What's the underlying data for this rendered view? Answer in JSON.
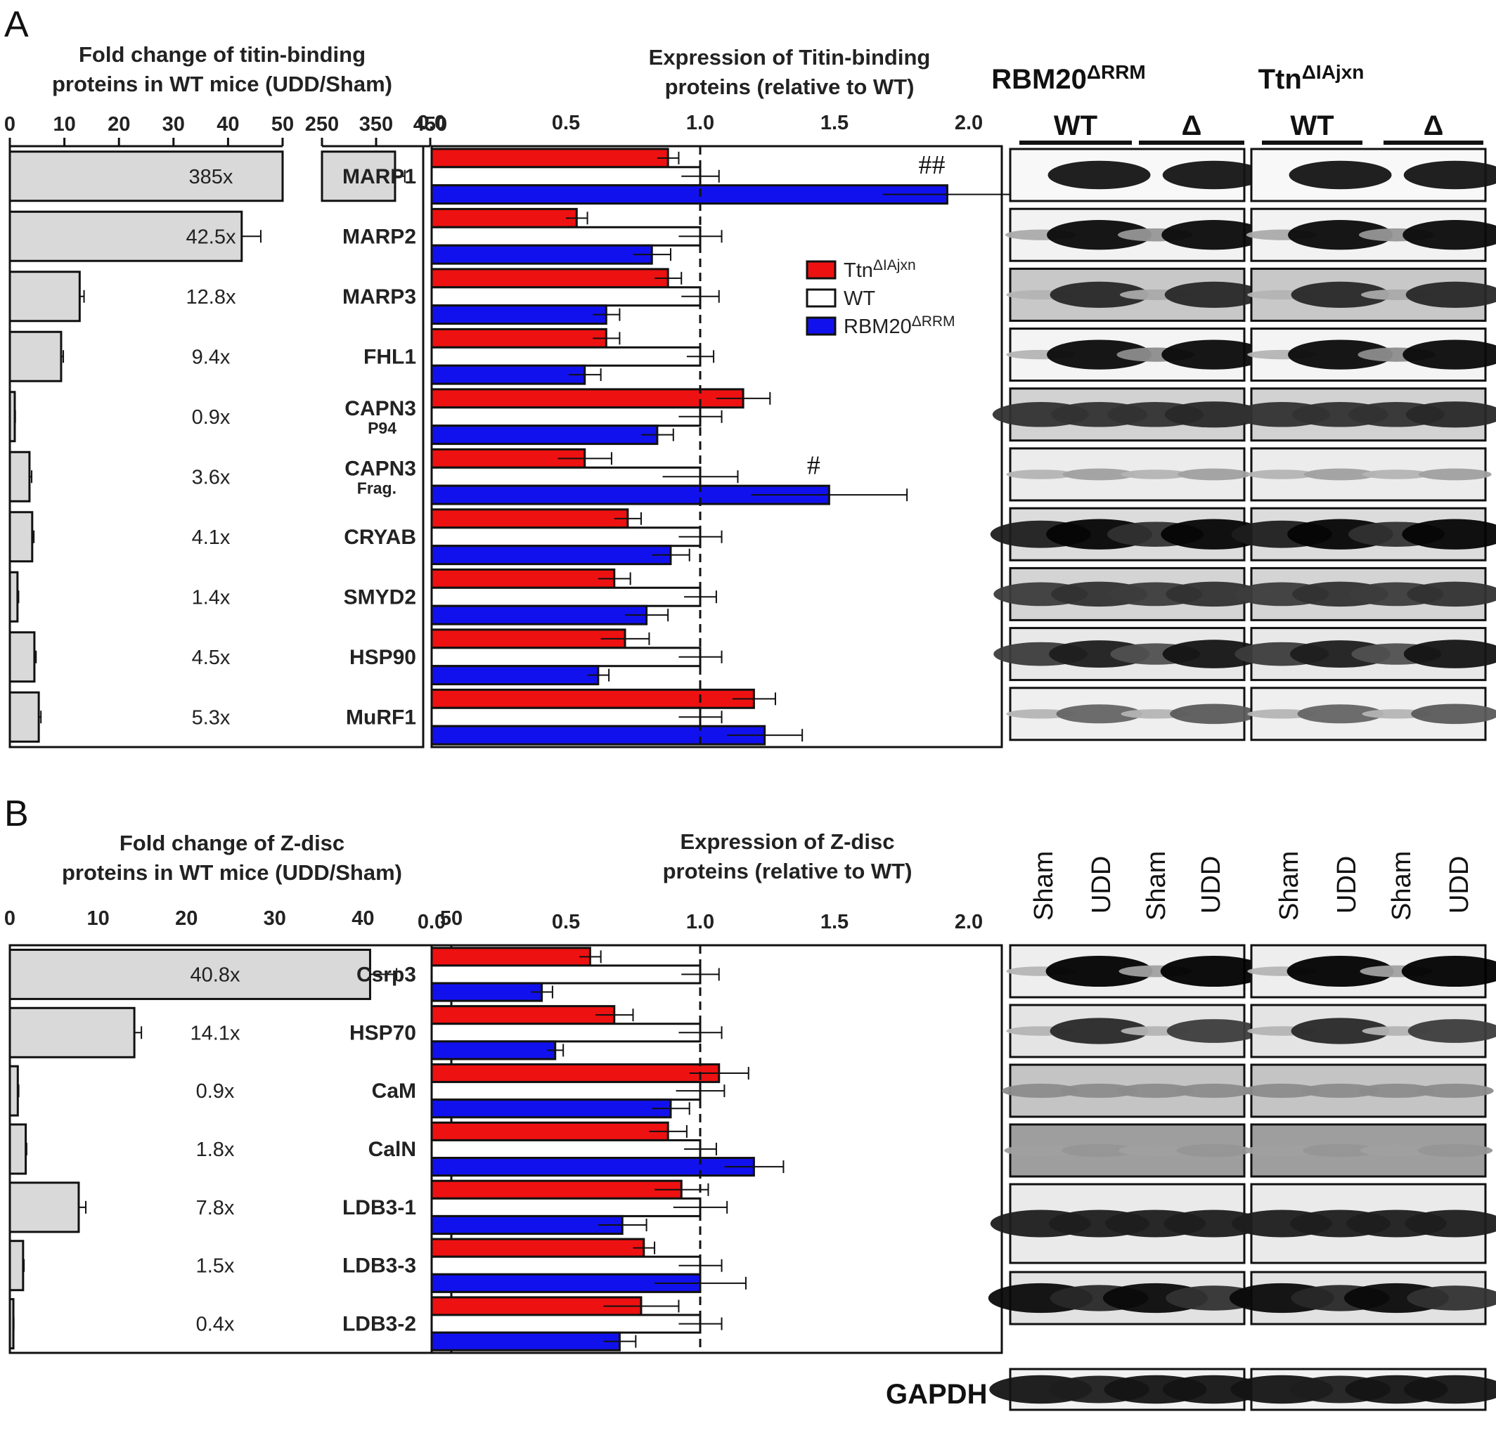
{
  "panels": {
    "a": "A",
    "b": "B"
  },
  "blot_headers": {
    "a_group1": "RBM20",
    "a_group1_sup": "ΔRRM",
    "a_group2": "Ttn",
    "a_group2_sup": "ΔIAjxn",
    "a_lanes": [
      "WT",
      "Δ",
      "WT",
      "Δ"
    ],
    "b_lanes": [
      "Sham",
      "UDD",
      "Sham",
      "UDD",
      "Sham",
      "UDD",
      "Sham",
      "UDD"
    ],
    "gapdh": "GAPDH"
  },
  "legend": [
    {
      "name": "Ttn",
      "sup": "ΔIAjxn",
      "color": "#ee1111"
    },
    {
      "name": "WT",
      "sup": "",
      "color": "#ffffff"
    },
    {
      "name": "RBM20",
      "sup": "ΔRRM",
      "color": "#1111ee"
    }
  ],
  "colors": {
    "fold_bar": "#d9d9d9",
    "ttn": "#ee1111",
    "wt": "#ffffff",
    "rbm20": "#1111ee",
    "dashed_line": "#111111"
  },
  "chart_data": [
    {
      "type": "bar",
      "orientation": "horizontal",
      "title_lines": [
        "Fold change of titin-binding",
        "proteins in WT mice (UDD/Sham)"
      ],
      "axis_break": {
        "segment1": [
          0,
          50
        ],
        "segment2": [
          250,
          450
        ]
      },
      "ticks": [
        "0",
        "10",
        "20",
        "30",
        "40",
        "50",
        "250",
        "350",
        "450"
      ],
      "categories": [
        "MARP1",
        "MARP2",
        "MARP3",
        "FHL1",
        "CAPN3 P94",
        "CAPN3 Frag.",
        "CRYAB",
        "SMYD2",
        "HSP90",
        "MuRF1"
      ],
      "values": [
        385,
        42.5,
        12.8,
        9.4,
        0.9,
        3.6,
        4.1,
        1.4,
        4.5,
        5.3
      ],
      "errors": [
        18,
        3.5,
        0.8,
        0.4,
        0.1,
        0.4,
        0.3,
        0.2,
        0.3,
        0.4
      ],
      "labels": [
        "385x",
        "42.5x",
        "12.8x",
        "9.4x",
        "0.9x",
        "3.6x",
        "4.1x",
        "1.4x",
        "4.5x",
        "5.3x"
      ]
    },
    {
      "type": "bar",
      "orientation": "horizontal",
      "title_lines": [
        "Expression of Titin-binding",
        "proteins (relative to WT)"
      ],
      "xlim": [
        0,
        2.0
      ],
      "ticks": [
        "0.0",
        "0.5",
        "1.0",
        "1.5",
        "2.0"
      ],
      "reference_line": 1.0,
      "categories": [
        {
          "main": "MARP1",
          "sub": ""
        },
        {
          "main": "MARP2",
          "sub": ""
        },
        {
          "main": "MARP3",
          "sub": ""
        },
        {
          "main": "FHL1",
          "sub": ""
        },
        {
          "main": "CAPN3",
          "sub": "P94"
        },
        {
          "main": "CAPN3",
          "sub": "Frag."
        },
        {
          "main": "CRYAB",
          "sub": ""
        },
        {
          "main": "SMYD2",
          "sub": ""
        },
        {
          "main": "HSP90",
          "sub": ""
        },
        {
          "main": "MuRF1",
          "sub": ""
        }
      ],
      "series": [
        {
          "name": "TtnΔIAjxn",
          "values": [
            0.88,
            0.54,
            0.88,
            0.65,
            1.16,
            0.57,
            0.73,
            0.68,
            0.72,
            1.2
          ],
          "errors": [
            0.04,
            0.04,
            0.05,
            0.05,
            0.1,
            0.1,
            0.05,
            0.06,
            0.09,
            0.08
          ]
        },
        {
          "name": "WT",
          "values": [
            1.0,
            1.0,
            1.0,
            1.0,
            1.0,
            1.0,
            1.0,
            1.0,
            1.0,
            1.0
          ],
          "errors": [
            0.07,
            0.08,
            0.07,
            0.05,
            0.08,
            0.14,
            0.08,
            0.06,
            0.08,
            0.08
          ]
        },
        {
          "name": "RBM20ΔRRM",
          "values": [
            1.92,
            0.82,
            0.65,
            0.57,
            0.84,
            1.48,
            0.89,
            0.8,
            0.62,
            1.24
          ],
          "errors": [
            0.24,
            0.07,
            0.05,
            0.06,
            0.06,
            0.29,
            0.07,
            0.08,
            0.04,
            0.14
          ]
        }
      ],
      "annotations": [
        {
          "category": "MARP1",
          "text": "##"
        },
        {
          "category": "CAPN3 Frag.",
          "text": "#"
        }
      ]
    },
    {
      "type": "bar",
      "orientation": "horizontal",
      "title_lines": [
        "Fold change of Z-disc",
        "proteins in WT mice (UDD/Sham)"
      ],
      "xlim": [
        0,
        50
      ],
      "ticks": [
        "0",
        "10",
        "20",
        "30",
        "40",
        "50"
      ],
      "categories": [
        "Csrp3",
        "HSP70",
        "CaM",
        "CalN",
        "LDB3-1",
        "LDB3-3",
        "LDB3-2"
      ],
      "values": [
        40.8,
        14.1,
        0.9,
        1.8,
        7.8,
        1.5,
        0.4
      ],
      "errors": [
        3.0,
        0.8,
        0.1,
        0.1,
        0.8,
        0.1,
        0.05
      ],
      "labels": [
        "40.8x",
        "14.1x",
        "0.9x",
        "1.8x",
        "7.8x",
        "1.5x",
        "0.4x"
      ]
    },
    {
      "type": "bar",
      "orientation": "horizontal",
      "title_lines": [
        "Expression of Z-disc",
        "proteins (relative to WT)"
      ],
      "xlim": [
        0,
        2.0
      ],
      "ticks": [
        "0.0",
        "0.5",
        "1.0",
        "1.5",
        "2.0"
      ],
      "reference_line": 1.0,
      "categories": [
        "Csrp3",
        "HSP70",
        "CaM",
        "CalN",
        "LDB3-1",
        "LDB3-3",
        "LDB3-2"
      ],
      "series": [
        {
          "name": "TtnΔIAjxn",
          "values": [
            0.59,
            0.68,
            1.07,
            0.88,
            0.93,
            0.79,
            0.78
          ],
          "errors": [
            0.04,
            0.07,
            0.11,
            0.07,
            0.1,
            0.04,
            0.14
          ]
        },
        {
          "name": "WT",
          "values": [
            1.0,
            1.0,
            1.0,
            1.0,
            1.0,
            1.0,
            1.0
          ],
          "errors": [
            0.07,
            0.08,
            0.09,
            0.06,
            0.1,
            0.08,
            0.08
          ]
        },
        {
          "name": "RBM20ΔRRM",
          "values": [
            0.41,
            0.46,
            0.89,
            1.2,
            0.71,
            1.0,
            0.7
          ],
          "errors": [
            0.04,
            0.03,
            0.07,
            0.11,
            0.09,
            0.17,
            0.06
          ]
        }
      ]
    }
  ]
}
